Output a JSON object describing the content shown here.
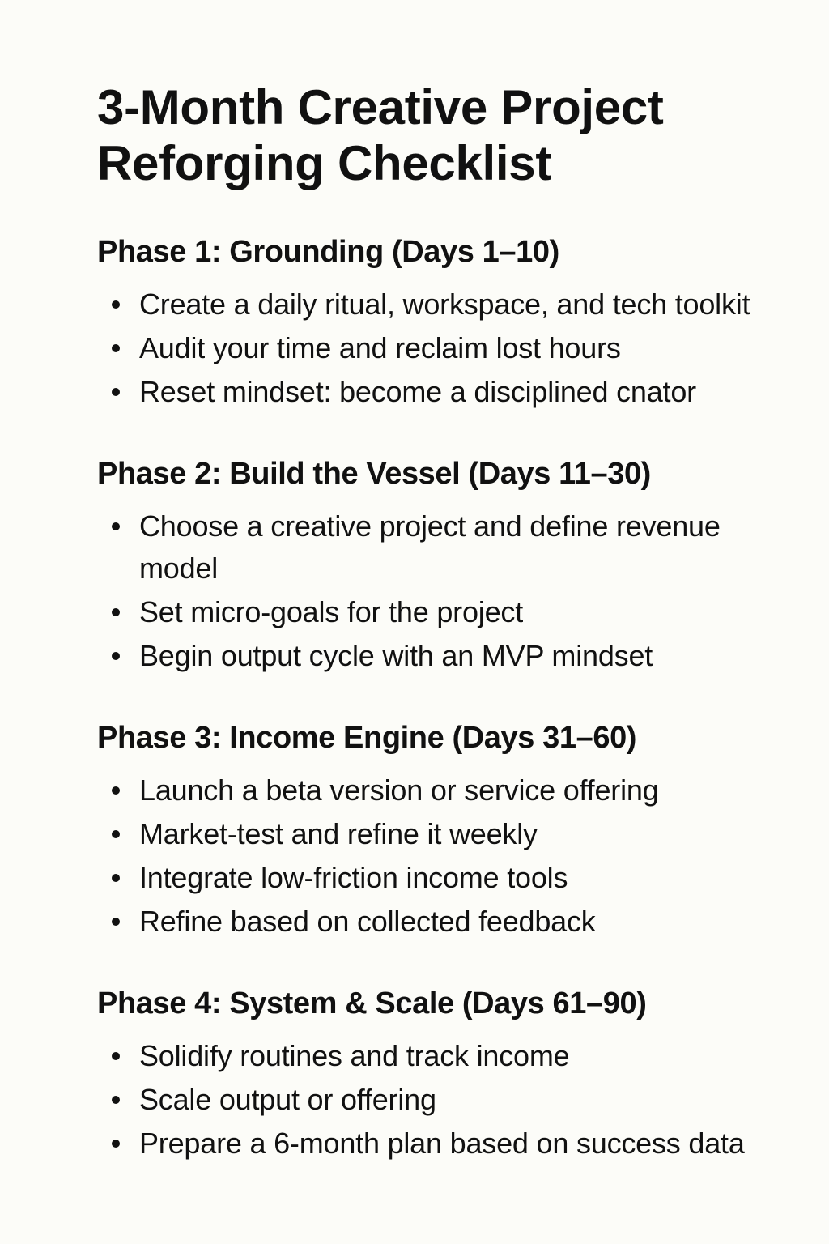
{
  "document": {
    "title_line1": "3-Month Creative Project",
    "title_line2": "Reforging Checklist",
    "phases": [
      {
        "heading": "Phase 1: Grounding (Days 1–10)",
        "items": [
          "Create a daily ritual, workspace, and tech toolkit",
          "Audit your time and reclaim lost hours",
          "Reset mindset: become a disciplined cnator"
        ]
      },
      {
        "heading": "Phase 2: Build the Vessel (Days 11–30)",
        "items": [
          "Choose a creative project and define revenue model",
          "Set micro-goals for the project",
          "Begin output cycle with an MVP mindset"
        ]
      },
      {
        "heading": "Phase 3: Income Engine (Days 31–60)",
        "items": [
          "Launch a beta version or service offering",
          "Market-test and refine it weekly",
          "Integrate low-friction income tools",
          "Refine based on collected feedback"
        ]
      },
      {
        "heading": "Phase 4: System & Scale (Days 61–90)",
        "items": [
          "Solidify routines and track income",
          "Scale output or offering",
          "Prepare a 6-month plan based on success data"
        ]
      }
    ]
  }
}
